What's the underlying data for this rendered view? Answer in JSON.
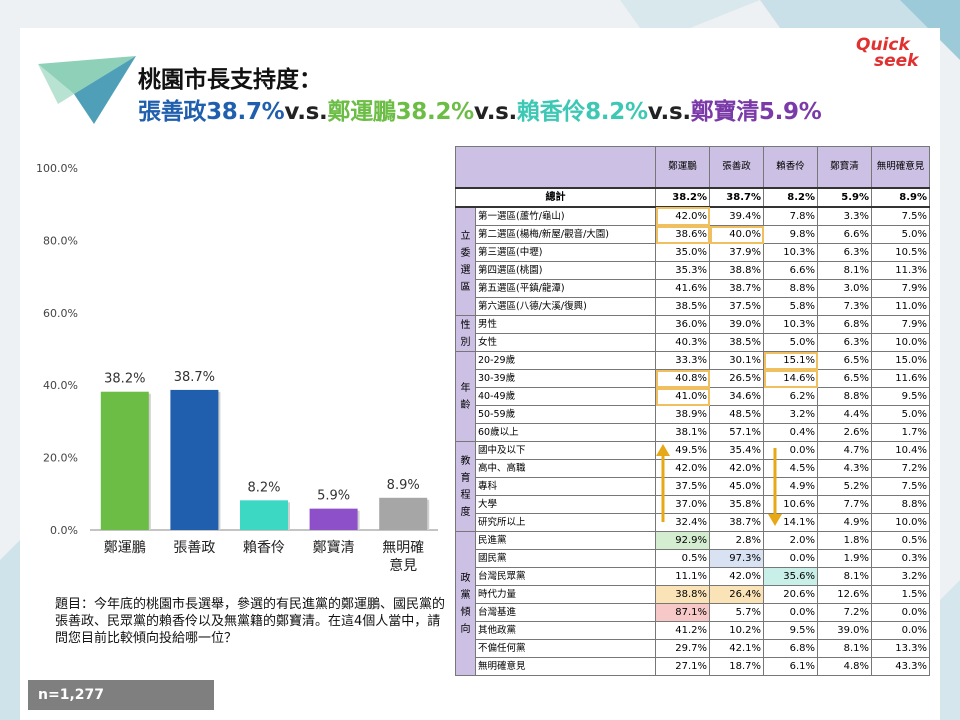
{
  "title": {
    "line1": "桃園市長支持度：",
    "line2_parts": [
      {
        "text": "張善政38.7%",
        "color": "#1f5fae"
      },
      {
        "text": "v.s.",
        "color": "#222222"
      },
      {
        "text": "鄭運鵬38.2%",
        "color": "#6cbd45"
      },
      {
        "text": "v.s.",
        "color": "#222222"
      },
      {
        "text": "賴香伶8.2%",
        "color": "#3cc8b4"
      },
      {
        "text": "v.s.",
        "color": "#222222"
      },
      {
        "text": "鄭寶清5.9%",
        "color": "#7a3aa8"
      }
    ]
  },
  "logo": {
    "line1": "Quick",
    "line2": "seek"
  },
  "chart_data": {
    "type": "bar",
    "categories": [
      "鄭運鵬",
      "張善政",
      "賴香伶",
      "鄭寶清",
      "無明確\n意見"
    ],
    "values": [
      38.2,
      38.7,
      8.2,
      5.9,
      8.9
    ],
    "value_labels": [
      "38.2%",
      "38.7%",
      "8.2%",
      "5.9%",
      "8.9%"
    ],
    "colors": [
      "#6cbd45",
      "#1f5fae",
      "#3dd8c4",
      "#8e50c8",
      "#a6a6a6"
    ],
    "yticks": [
      "0.0%",
      "20.0%",
      "40.0%",
      "60.0%",
      "80.0%",
      "100.0%"
    ],
    "ylim": [
      0,
      100
    ],
    "grid": false
  },
  "question": "題目：今年底的桃園市長選舉，參選的有民進黨的鄭運鵬、國民黨的張善政、民眾黨的賴香伶以及無黨籍的鄭寶清。在這4個人當中，請問您目前比較傾向投給哪一位？",
  "sample": "n=1,277",
  "table": {
    "headers": [
      "鄭運鵬",
      "張善政",
      "賴香伶",
      "鄭寶清",
      "無明確意見"
    ],
    "total": {
      "label": "總計",
      "values": [
        "38.2%",
        "38.7%",
        "8.2%",
        "5.9%",
        "8.9%"
      ]
    },
    "groups": [
      {
        "name": "立委選區",
        "rows": [
          {
            "label": "第一選區(蘆竹/龜山)",
            "values": [
              "42.0%",
              "39.4%",
              "7.8%",
              "3.3%",
              "7.5%"
            ]
          },
          {
            "label": "第二選區(楊梅/新屋/觀音/大園)",
            "values": [
              "38.6%",
              "40.0%",
              "9.8%",
              "6.6%",
              "5.0%"
            ]
          },
          {
            "label": "第三選區(中壢)",
            "values": [
              "35.0%",
              "37.9%",
              "10.3%",
              "6.3%",
              "10.5%"
            ]
          },
          {
            "label": "第四選區(桃園)",
            "values": [
              "35.3%",
              "38.8%",
              "6.6%",
              "8.1%",
              "11.3%"
            ]
          },
          {
            "label": "第五選區(平鎮/龍潭)",
            "values": [
              "41.6%",
              "38.7%",
              "8.8%",
              "3.0%",
              "7.9%"
            ]
          },
          {
            "label": "第六選區(八德/大溪/復興)",
            "values": [
              "38.5%",
              "37.5%",
              "5.8%",
              "7.3%",
              "11.0%"
            ]
          }
        ]
      },
      {
        "name": "性別",
        "rows": [
          {
            "label": "男性",
            "values": [
              "36.0%",
              "39.0%",
              "10.3%",
              "6.8%",
              "7.9%"
            ]
          },
          {
            "label": "女性",
            "values": [
              "40.3%",
              "38.5%",
              "5.0%",
              "6.3%",
              "10.0%"
            ]
          }
        ]
      },
      {
        "name": "年齡",
        "rows": [
          {
            "label": "20-29歲",
            "values": [
              "33.3%",
              "30.1%",
              "15.1%",
              "6.5%",
              "15.0%"
            ]
          },
          {
            "label": "30-39歲",
            "values": [
              "40.8%",
              "26.5%",
              "14.6%",
              "6.5%",
              "11.6%"
            ]
          },
          {
            "label": "40-49歲",
            "values": [
              "41.0%",
              "34.6%",
              "6.2%",
              "8.8%",
              "9.5%"
            ]
          },
          {
            "label": "50-59歲",
            "values": [
              "38.9%",
              "48.5%",
              "3.2%",
              "4.4%",
              "5.0%"
            ]
          },
          {
            "label": "60歲以上",
            "values": [
              "38.1%",
              "57.1%",
              "0.4%",
              "2.6%",
              "1.7%"
            ]
          }
        ]
      },
      {
        "name": "教育程度",
        "rows": [
          {
            "label": "國中及以下",
            "values": [
              "49.5%",
              "35.4%",
              "0.0%",
              "4.7%",
              "10.4%"
            ]
          },
          {
            "label": "高中、高職",
            "values": [
              "42.0%",
              "42.0%",
              "4.5%",
              "4.3%",
              "7.2%"
            ]
          },
          {
            "label": "專科",
            "values": [
              "37.5%",
              "45.0%",
              "4.9%",
              "5.2%",
              "7.5%"
            ]
          },
          {
            "label": "大學",
            "values": [
              "37.0%",
              "35.8%",
              "10.6%",
              "7.7%",
              "8.8%"
            ]
          },
          {
            "label": "研究所以上",
            "values": [
              "32.4%",
              "38.7%",
              "14.1%",
              "4.9%",
              "10.0%"
            ]
          }
        ]
      },
      {
        "name": "政黨傾向",
        "rows": [
          {
            "label": "民進黨",
            "values": [
              "92.9%",
              "2.8%",
              "2.0%",
              "1.8%",
              "0.5%"
            ]
          },
          {
            "label": "國民黨",
            "values": [
              "0.5%",
              "97.3%",
              "0.0%",
              "1.9%",
              "0.3%"
            ]
          },
          {
            "label": "台灣民眾黨",
            "values": [
              "11.1%",
              "42.0%",
              "35.6%",
              "8.1%",
              "3.2%"
            ]
          },
          {
            "label": "時代力量",
            "values": [
              "38.8%",
              "26.4%",
              "20.6%",
              "12.6%",
              "1.5%"
            ]
          },
          {
            "label": "台灣基進",
            "values": [
              "87.1%",
              "5.7%",
              "0.0%",
              "7.2%",
              "0.0%"
            ]
          },
          {
            "label": "其他政黨",
            "values": [
              "41.2%",
              "10.2%",
              "9.5%",
              "39.0%",
              "0.0%"
            ]
          },
          {
            "label": "不偏任何黨",
            "values": [
              "29.7%",
              "42.1%",
              "6.8%",
              "8.1%",
              "13.3%"
            ]
          },
          {
            "label": "無明確意見",
            "values": [
              "27.1%",
              "18.7%",
              "6.1%",
              "4.8%",
              "43.3%"
            ]
          }
        ]
      }
    ],
    "header_color": "#ccc1e4",
    "group_color": "#ccc1e4"
  }
}
